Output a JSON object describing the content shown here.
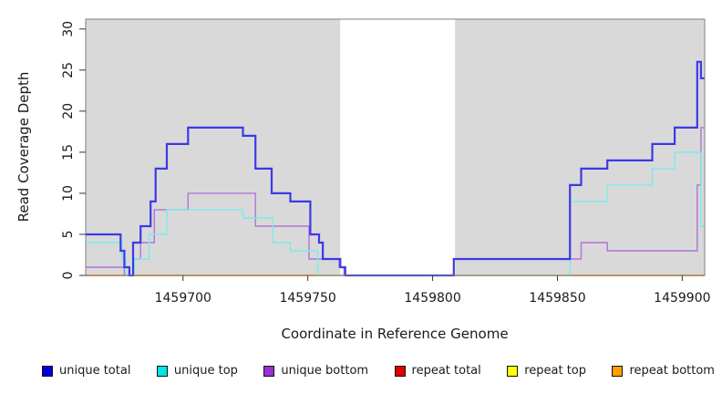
{
  "chart_data": {
    "type": "line",
    "subtype": "step-coverage",
    "title": "",
    "xlabel": "Coordinate in Reference Genome",
    "ylabel": "Read Coverage Depth",
    "x_domain": [
      1459661,
      1459909
    ],
    "y_domain": [
      0,
      31.2
    ],
    "x_ticks": [
      1459700,
      1459750,
      1459800,
      1459850,
      1459900
    ],
    "y_ticks": [
      0,
      5,
      10,
      15,
      20,
      25,
      30
    ],
    "grid": false,
    "plot_bg_color": "#d9d9d9",
    "frame_color": "#7f7f7f",
    "tick_color": "#333333",
    "masked_region": {
      "x0": 1459763,
      "x1": 1459809,
      "color": "#ffffff"
    },
    "legend_position": "bottom",
    "series": [
      {
        "id": "unique-total",
        "label": "unique total",
        "line_color": "#3a3ae8",
        "legend_color": "#0000e0",
        "line_width": 2.2,
        "steps": [
          [
            1459661,
            5
          ],
          [
            1459675,
            5
          ],
          [
            1459675,
            3
          ],
          [
            1459676.5,
            3
          ],
          [
            1459676.5,
            1
          ],
          [
            1459678.5,
            1
          ],
          [
            1459678.5,
            0
          ],
          [
            1459680,
            0
          ],
          [
            1459680,
            4
          ],
          [
            1459683,
            4
          ],
          [
            1459683,
            6
          ],
          [
            1459687,
            6
          ],
          [
            1459687,
            9
          ],
          [
            1459689,
            9
          ],
          [
            1459689,
            13
          ],
          [
            1459693.5,
            13
          ],
          [
            1459693.5,
            16
          ],
          [
            1459702,
            16
          ],
          [
            1459702,
            18
          ],
          [
            1459724,
            18
          ],
          [
            1459724,
            17
          ],
          [
            1459729,
            17
          ],
          [
            1459729,
            13
          ],
          [
            1459735.5,
            13
          ],
          [
            1459735.5,
            10
          ],
          [
            1459743,
            10
          ],
          [
            1459743,
            9
          ],
          [
            1459751,
            9
          ],
          [
            1459751,
            5
          ],
          [
            1459754.5,
            5
          ],
          [
            1459754.5,
            4
          ],
          [
            1459756,
            4
          ],
          [
            1459756,
            2
          ],
          [
            1459763,
            2
          ],
          [
            1459763,
            1
          ],
          [
            1459765,
            1
          ],
          [
            1459765,
            0
          ],
          [
            1459808.5,
            0
          ],
          [
            1459808.5,
            2
          ],
          [
            1459855,
            2
          ],
          [
            1459855,
            11
          ],
          [
            1459859.5,
            11
          ],
          [
            1459859.5,
            13
          ],
          [
            1459870,
            13
          ],
          [
            1459870,
            14
          ],
          [
            1459888,
            14
          ],
          [
            1459888,
            16
          ],
          [
            1459897,
            16
          ],
          [
            1459897,
            18
          ],
          [
            1459906,
            18
          ],
          [
            1459906,
            26
          ],
          [
            1459907.5,
            26
          ],
          [
            1459907.5,
            24
          ],
          [
            1459909,
            24
          ]
        ]
      },
      {
        "id": "unique-top",
        "label": "unique top",
        "line_color": "#7cebeb",
        "legend_color": "#00e5e5",
        "line_width": 1.4,
        "steps": [
          [
            1459661,
            4
          ],
          [
            1459675.5,
            4
          ],
          [
            1459675.5,
            2
          ],
          [
            1459677,
            2
          ],
          [
            1459677,
            0
          ],
          [
            1459680.5,
            0
          ],
          [
            1459680.5,
            2
          ],
          [
            1459686.5,
            2
          ],
          [
            1459686.5,
            5
          ],
          [
            1459693.5,
            5
          ],
          [
            1459693.5,
            8
          ],
          [
            1459724,
            8
          ],
          [
            1459724,
            7
          ],
          [
            1459736,
            7
          ],
          [
            1459736,
            4
          ],
          [
            1459743,
            4
          ],
          [
            1459743,
            3
          ],
          [
            1459754,
            3
          ],
          [
            1459754,
            0
          ],
          [
            1459855,
            0
          ],
          [
            1459855,
            9
          ],
          [
            1459870,
            9
          ],
          [
            1459870,
            11
          ],
          [
            1459888,
            11
          ],
          [
            1459888,
            13
          ],
          [
            1459897,
            13
          ],
          [
            1459897,
            15
          ],
          [
            1459907.5,
            15
          ],
          [
            1459907.5,
            6
          ],
          [
            1459909,
            6
          ]
        ]
      },
      {
        "id": "unique-bottom",
        "label": "unique bottom",
        "line_color": "#b273d9",
        "legend_color": "#9b30d0",
        "line_width": 1.4,
        "steps": [
          [
            1459661,
            1
          ],
          [
            1459676.5,
            1
          ],
          [
            1459676.5,
            0
          ],
          [
            1459680,
            0
          ],
          [
            1459680,
            2
          ],
          [
            1459683,
            2
          ],
          [
            1459683,
            4
          ],
          [
            1459688.5,
            4
          ],
          [
            1459688.5,
            8
          ],
          [
            1459702,
            8
          ],
          [
            1459702,
            10
          ],
          [
            1459729,
            10
          ],
          [
            1459729,
            6
          ],
          [
            1459750.5,
            6
          ],
          [
            1459750.5,
            2
          ],
          [
            1459762.5,
            2
          ],
          [
            1459762.5,
            1
          ],
          [
            1459764.5,
            1
          ],
          [
            1459764.5,
            0
          ],
          [
            1459808.5,
            0
          ],
          [
            1459808.5,
            2
          ],
          [
            1459859.5,
            2
          ],
          [
            1459859.5,
            4
          ],
          [
            1459870,
            4
          ],
          [
            1459870,
            3
          ],
          [
            1459906,
            3
          ],
          [
            1459906,
            11
          ],
          [
            1459907.5,
            11
          ],
          [
            1459907.5,
            18
          ],
          [
            1459909,
            18
          ]
        ]
      },
      {
        "id": "repeat-total",
        "label": "repeat total",
        "line_color": "#e00000",
        "legend_color": "#e00000",
        "line_width": 1.2,
        "steps": [
          [
            1459661,
            0
          ],
          [
            1459909,
            0
          ]
        ]
      },
      {
        "id": "repeat-top",
        "label": "repeat top",
        "line_color": "#ffff00",
        "legend_color": "#ffff00",
        "line_width": 1.2,
        "steps": [
          [
            1459661,
            0
          ],
          [
            1459909,
            0
          ]
        ]
      },
      {
        "id": "repeat-bottom",
        "label": "repeat bottom",
        "line_color": "#ff8c00",
        "legend_color": "#ffa000",
        "line_width": 1.6,
        "steps": [
          [
            1459661,
            0
          ],
          [
            1459909,
            0
          ]
        ]
      }
    ]
  }
}
